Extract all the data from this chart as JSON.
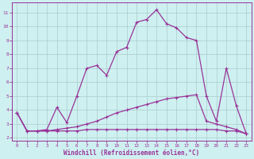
{
  "xlabel": "Windchill (Refroidissement éolien,°C)",
  "xlim": [
    -0.5,
    23.5
  ],
  "ylim": [
    1.8,
    11.7
  ],
  "bg_color": "#cef0f0",
  "line_color": "#993399",
  "grid_color": "#aacccc",
  "xticks": [
    0,
    1,
    2,
    3,
    4,
    5,
    6,
    7,
    8,
    9,
    10,
    11,
    12,
    13,
    14,
    15,
    16,
    17,
    18,
    19,
    20,
    21,
    22,
    23
  ],
  "yticks": [
    2,
    3,
    4,
    5,
    6,
    7,
    8,
    9,
    10,
    11
  ],
  "curve1_x": [
    0,
    1,
    2,
    3,
    4,
    5,
    6,
    7,
    8,
    9,
    10,
    11,
    12,
    13,
    14,
    15,
    16,
    17,
    18,
    19,
    20,
    21,
    22,
    23
  ],
  "curve1_y": [
    3.8,
    2.5,
    2.5,
    2.6,
    4.2,
    3.1,
    5.0,
    7.0,
    7.2,
    6.5,
    8.2,
    8.5,
    10.3,
    10.5,
    11.2,
    10.2,
    9.9,
    9.2,
    9.0,
    5.0,
    3.2,
    7.0,
    4.3,
    2.3
  ],
  "curve2_x": [
    0,
    1,
    2,
    3,
    4,
    5,
    6,
    7,
    8,
    9,
    10,
    11,
    12,
    13,
    14,
    15,
    16,
    17,
    18,
    19,
    20,
    21,
    22,
    23
  ],
  "curve2_y": [
    3.8,
    2.5,
    2.5,
    2.5,
    2.6,
    2.7,
    2.8,
    3.0,
    3.2,
    3.5,
    3.8,
    4.0,
    4.2,
    4.4,
    4.6,
    4.8,
    4.9,
    5.0,
    5.1,
    3.2,
    3.0,
    2.8,
    2.6,
    2.3
  ],
  "curve3_x": [
    0,
    1,
    2,
    3,
    4,
    5,
    6,
    7,
    8,
    9,
    10,
    11,
    12,
    13,
    14,
    15,
    16,
    17,
    18,
    19,
    20,
    21,
    22,
    23
  ],
  "curve3_y": [
    3.8,
    2.5,
    2.5,
    2.5,
    2.5,
    2.5,
    2.5,
    2.6,
    2.6,
    2.6,
    2.6,
    2.6,
    2.6,
    2.6,
    2.6,
    2.6,
    2.6,
    2.6,
    2.6,
    2.6,
    2.6,
    2.5,
    2.5,
    2.3
  ]
}
